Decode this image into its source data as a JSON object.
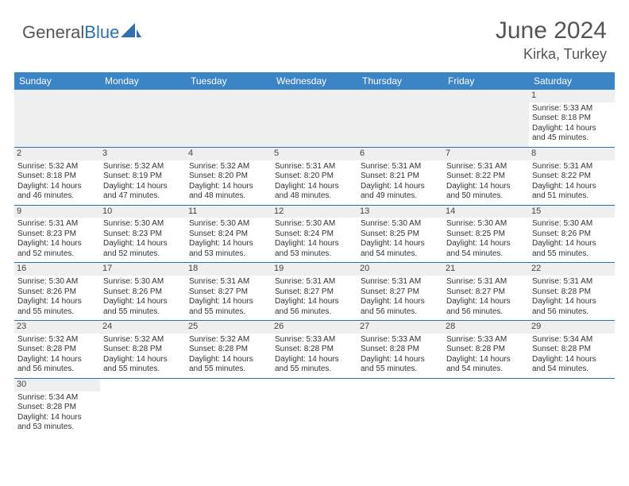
{
  "brand": {
    "part1": "General",
    "part2": "Blue"
  },
  "title": "June 2024",
  "location": "Kirka, Turkey",
  "colors": {
    "header_bg": "#3b85c6",
    "header_text": "#ffffff",
    "grid_border": "#2f6fb0",
    "daynum_bg": "#efefef",
    "text": "#333333",
    "title_text": "#555555"
  },
  "weekdays": [
    "Sunday",
    "Monday",
    "Tuesday",
    "Wednesday",
    "Thursday",
    "Friday",
    "Saturday"
  ],
  "first_weekday_index": 6,
  "days": [
    {
      "n": 1,
      "sunrise": "5:33 AM",
      "sunset": "8:18 PM",
      "dl_h": 14,
      "dl_m": 45
    },
    {
      "n": 2,
      "sunrise": "5:32 AM",
      "sunset": "8:18 PM",
      "dl_h": 14,
      "dl_m": 46
    },
    {
      "n": 3,
      "sunrise": "5:32 AM",
      "sunset": "8:19 PM",
      "dl_h": 14,
      "dl_m": 47
    },
    {
      "n": 4,
      "sunrise": "5:32 AM",
      "sunset": "8:20 PM",
      "dl_h": 14,
      "dl_m": 48
    },
    {
      "n": 5,
      "sunrise": "5:31 AM",
      "sunset": "8:20 PM",
      "dl_h": 14,
      "dl_m": 48
    },
    {
      "n": 6,
      "sunrise": "5:31 AM",
      "sunset": "8:21 PM",
      "dl_h": 14,
      "dl_m": 49
    },
    {
      "n": 7,
      "sunrise": "5:31 AM",
      "sunset": "8:22 PM",
      "dl_h": 14,
      "dl_m": 50
    },
    {
      "n": 8,
      "sunrise": "5:31 AM",
      "sunset": "8:22 PM",
      "dl_h": 14,
      "dl_m": 51
    },
    {
      "n": 9,
      "sunrise": "5:31 AM",
      "sunset": "8:23 PM",
      "dl_h": 14,
      "dl_m": 52
    },
    {
      "n": 10,
      "sunrise": "5:30 AM",
      "sunset": "8:23 PM",
      "dl_h": 14,
      "dl_m": 52
    },
    {
      "n": 11,
      "sunrise": "5:30 AM",
      "sunset": "8:24 PM",
      "dl_h": 14,
      "dl_m": 53
    },
    {
      "n": 12,
      "sunrise": "5:30 AM",
      "sunset": "8:24 PM",
      "dl_h": 14,
      "dl_m": 53
    },
    {
      "n": 13,
      "sunrise": "5:30 AM",
      "sunset": "8:25 PM",
      "dl_h": 14,
      "dl_m": 54
    },
    {
      "n": 14,
      "sunrise": "5:30 AM",
      "sunset": "8:25 PM",
      "dl_h": 14,
      "dl_m": 54
    },
    {
      "n": 15,
      "sunrise": "5:30 AM",
      "sunset": "8:26 PM",
      "dl_h": 14,
      "dl_m": 55
    },
    {
      "n": 16,
      "sunrise": "5:30 AM",
      "sunset": "8:26 PM",
      "dl_h": 14,
      "dl_m": 55
    },
    {
      "n": 17,
      "sunrise": "5:30 AM",
      "sunset": "8:26 PM",
      "dl_h": 14,
      "dl_m": 55
    },
    {
      "n": 18,
      "sunrise": "5:31 AM",
      "sunset": "8:27 PM",
      "dl_h": 14,
      "dl_m": 55
    },
    {
      "n": 19,
      "sunrise": "5:31 AM",
      "sunset": "8:27 PM",
      "dl_h": 14,
      "dl_m": 56
    },
    {
      "n": 20,
      "sunrise": "5:31 AM",
      "sunset": "8:27 PM",
      "dl_h": 14,
      "dl_m": 56
    },
    {
      "n": 21,
      "sunrise": "5:31 AM",
      "sunset": "8:27 PM",
      "dl_h": 14,
      "dl_m": 56
    },
    {
      "n": 22,
      "sunrise": "5:31 AM",
      "sunset": "8:28 PM",
      "dl_h": 14,
      "dl_m": 56
    },
    {
      "n": 23,
      "sunrise": "5:32 AM",
      "sunset": "8:28 PM",
      "dl_h": 14,
      "dl_m": 56
    },
    {
      "n": 24,
      "sunrise": "5:32 AM",
      "sunset": "8:28 PM",
      "dl_h": 14,
      "dl_m": 55
    },
    {
      "n": 25,
      "sunrise": "5:32 AM",
      "sunset": "8:28 PM",
      "dl_h": 14,
      "dl_m": 55
    },
    {
      "n": 26,
      "sunrise": "5:33 AM",
      "sunset": "8:28 PM",
      "dl_h": 14,
      "dl_m": 55
    },
    {
      "n": 27,
      "sunrise": "5:33 AM",
      "sunset": "8:28 PM",
      "dl_h": 14,
      "dl_m": 55
    },
    {
      "n": 28,
      "sunrise": "5:33 AM",
      "sunset": "8:28 PM",
      "dl_h": 14,
      "dl_m": 54
    },
    {
      "n": 29,
      "sunrise": "5:34 AM",
      "sunset": "8:28 PM",
      "dl_h": 14,
      "dl_m": 54
    },
    {
      "n": 30,
      "sunrise": "5:34 AM",
      "sunset": "8:28 PM",
      "dl_h": 14,
      "dl_m": 53
    }
  ],
  "labels": {
    "sunrise": "Sunrise:",
    "sunset": "Sunset:",
    "daylight_prefix": "Daylight:",
    "hours_word": "hours",
    "and_word": "and",
    "minutes_word": "minutes."
  }
}
